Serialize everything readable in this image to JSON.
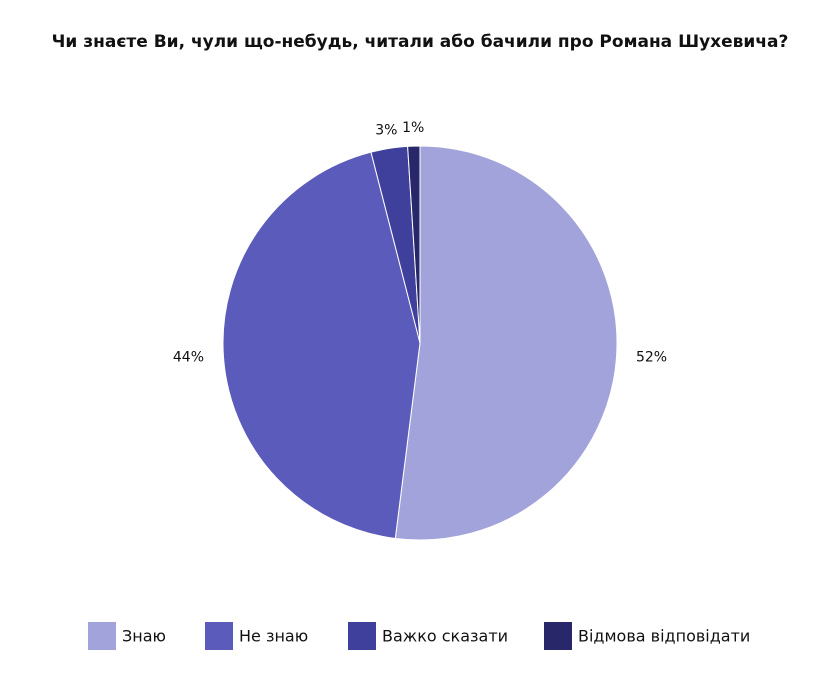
{
  "chart_data": {
    "type": "pie",
    "title": "Чи знаєте Ви, чули що-небудь, читали або бачили про Романа Шухевича?",
    "categories": [
      "Знаю",
      "Не знаю",
      "Важко сказати",
      "Відмова відповідати"
    ],
    "values": [
      52,
      44,
      3,
      1
    ],
    "value_labels": [
      "52%",
      "44%",
      "3%",
      "1%"
    ],
    "colors": [
      "#a3a3db",
      "#5b5bbb",
      "#3f3f9c",
      "#27276a"
    ],
    "legend": "bottom"
  }
}
